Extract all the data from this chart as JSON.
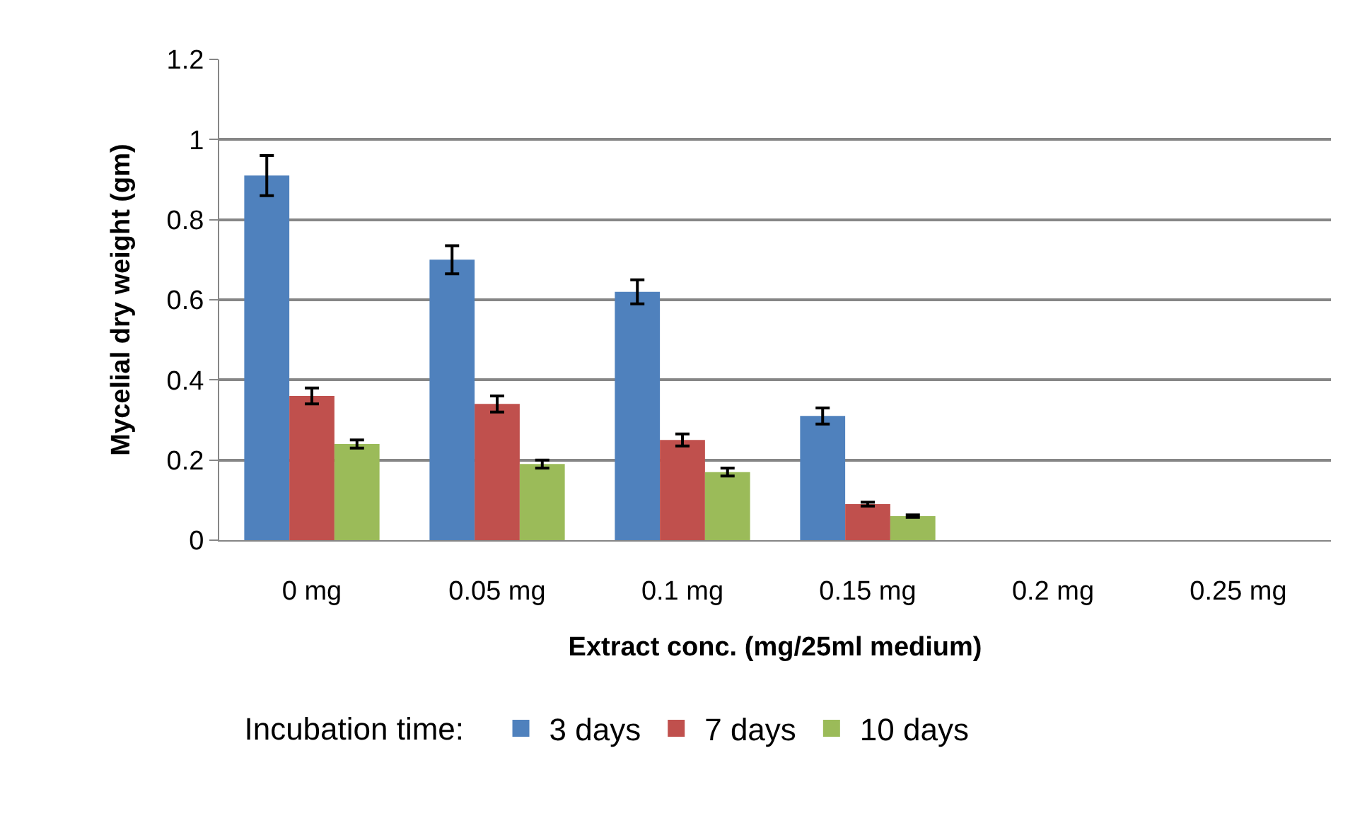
{
  "chart_data": {
    "type": "bar",
    "xlabel": "Extract conc. (mg/25ml medium)",
    "ylabel": "Mycelial dry weight (gm)",
    "legend_title": "Incubation time:",
    "categories": [
      "0 mg",
      "0.05 mg",
      "0.1 mg",
      "0.15 mg",
      "0.2 mg",
      "0.25 mg"
    ],
    "series": [
      {
        "name": "3 days",
        "color": "#4f81bd",
        "values": [
          0.91,
          0.7,
          0.62,
          0.31,
          0,
          0
        ],
        "errors": [
          0.05,
          0.035,
          0.03,
          0.02,
          null,
          null
        ]
      },
      {
        "name": "7 days",
        "color": "#c0504d",
        "values": [
          0.36,
          0.34,
          0.25,
          0.09,
          0,
          0
        ],
        "errors": [
          0.02,
          0.02,
          0.015,
          0.005,
          null,
          null
        ]
      },
      {
        "name": "10 days",
        "color": "#9bbb59",
        "values": [
          0.24,
          0.19,
          0.17,
          0.06,
          0,
          0
        ],
        "errors": [
          0.01,
          0.01,
          0.01,
          0.003,
          null,
          null
        ]
      }
    ],
    "ylim": [
      0,
      1.2
    ],
    "yticks": [
      0,
      0.2,
      0.4,
      0.6,
      0.8,
      1,
      1.2
    ],
    "grid": "y",
    "legend": "bottom"
  }
}
